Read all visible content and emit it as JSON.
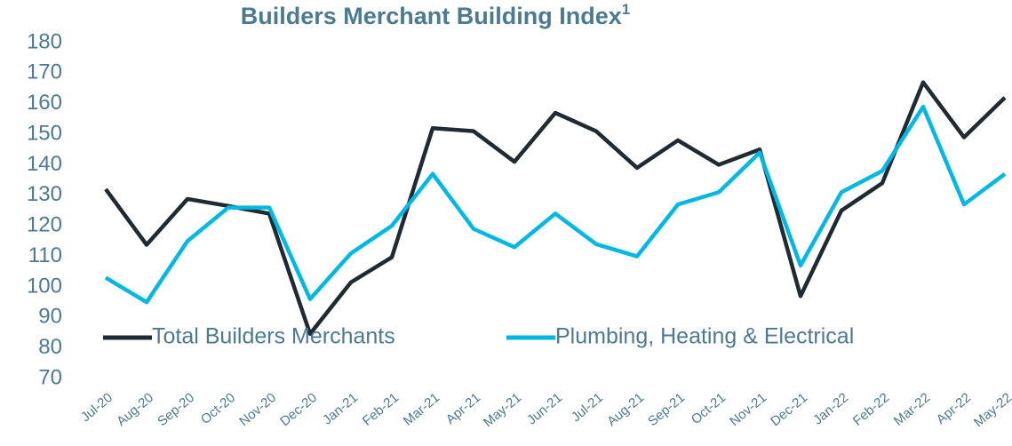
{
  "chart_data": {
    "type": "line",
    "title": "Builders Merchant Building Index",
    "title_superscript": "1",
    "categories": [
      "Jul-20",
      "Aug-20",
      "Sep-20",
      "Oct-20",
      "Nov-20",
      "Dec-20",
      "Jan-21",
      "Feb-21",
      "Mar-21",
      "Apr-21",
      "May-21",
      "Jun-21",
      "Jul-21",
      "Aug-21",
      "Sep-21",
      "Oct-21",
      "Nov-21",
      "Dec-21",
      "Jan-22",
      "Feb-22",
      "Mar-22",
      "Apr-22",
      "May-22"
    ],
    "series": [
      {
        "name": "Total Builders Merchants",
        "color": "#1f2a33",
        "values": [
          132,
          113.8,
          128.8,
          126.5,
          124,
          84.6,
          101.5,
          109.7,
          152,
          151,
          141,
          157,
          151,
          139,
          148,
          140,
          145,
          97,
          125,
          134,
          167,
          149,
          162
        ]
      },
      {
        "name": "Plumbing, Heating & Electrical",
        "color": "#00b8e2",
        "values": [
          103,
          95,
          115,
          126,
          126,
          96,
          111,
          120,
          137,
          119,
          113,
          124,
          114,
          110,
          127,
          131,
          144,
          107,
          131,
          138,
          159,
          127,
          137
        ]
      }
    ],
    "ylim": [
      70,
      180
    ],
    "yticks": [
      70,
      80,
      90,
      100,
      110,
      120,
      130,
      140,
      150,
      160,
      170,
      180
    ],
    "grid": false,
    "legend": "bottom"
  }
}
